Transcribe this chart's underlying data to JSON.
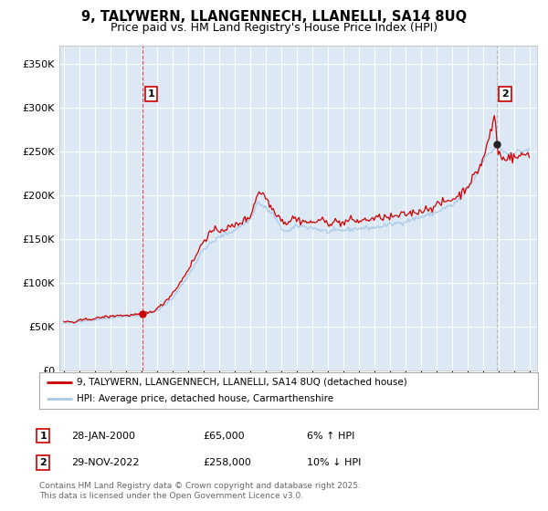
{
  "title": "9, TALYWERN, LLANGENNECH, LLANELLI, SA14 8UQ",
  "subtitle": "Price paid vs. HM Land Registry's House Price Index (HPI)",
  "bg_color": "#ffffff",
  "plot_bg_color": "#dce9f5",
  "grid_color": "#ffffff",
  "hpi_color": "#a8c8e8",
  "price_color": "#cc0000",
  "ylim": [
    0,
    370000
  ],
  "yticks": [
    0,
    50000,
    100000,
    150000,
    200000,
    250000,
    300000,
    350000
  ],
  "ytick_labels": [
    "£0",
    "£50K",
    "£100K",
    "£150K",
    "£200K",
    "£250K",
    "£300K",
    "£350K"
  ],
  "xlim_start": 1994.7,
  "xlim_end": 2025.5,
  "marker1_x": 2000.08,
  "marker1_y": 65000,
  "marker1_label": "1",
  "marker1_date": "28-JAN-2000",
  "marker1_price": "£65,000",
  "marker1_hpi": "6% ↑ HPI",
  "marker2_x": 2022.92,
  "marker2_y": 258000,
  "marker2_label": "2",
  "marker2_date": "29-NOV-2022",
  "marker2_price": "£258,000",
  "marker2_hpi": "10% ↓ HPI",
  "vline1_x": 2000.08,
  "vline2_x": 2022.92,
  "legend_label1": "9, TALYWERN, LLANGENNECH, LLANELLI, SA14 8UQ (detached house)",
  "legend_label2": "HPI: Average price, detached house, Carmarthenshire",
  "footer": "Contains HM Land Registry data © Crown copyright and database right 2025.\nThis data is licensed under the Open Government Licence v3.0."
}
